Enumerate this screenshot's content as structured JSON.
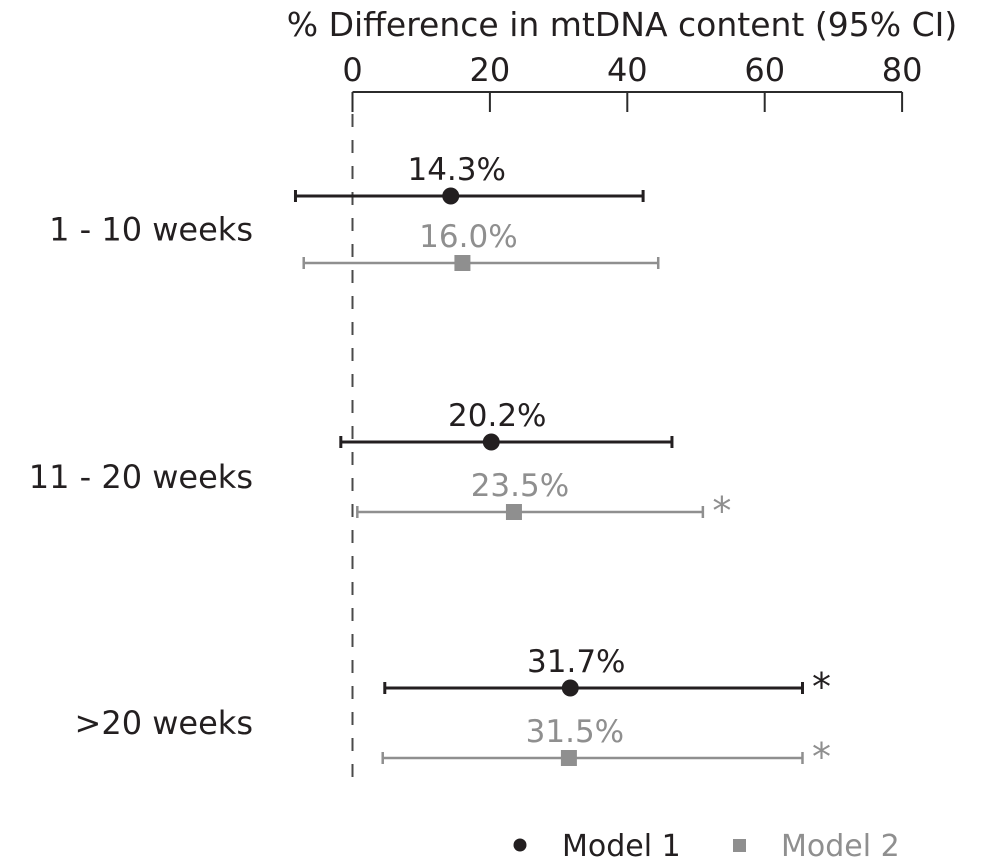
{
  "figure": {
    "title": "% Difference in mtDNA content (95% CI)"
  },
  "chart_data": {
    "type": "forest",
    "orientation": "horizontal",
    "title": "% Difference in mtDNA content (95% CI)",
    "axis": {
      "position": "top",
      "range": [
        0,
        80
      ],
      "ticks": [
        0,
        20,
        40,
        60,
        80
      ],
      "tick_labels": [
        "0",
        "20",
        "40",
        "60",
        "80"
      ],
      "zero_line": {
        "at": 0,
        "style": "dashed"
      }
    },
    "significance_marker": "*",
    "groups": [
      {
        "label": "1 - 10 weeks",
        "estimates": [
          {
            "series": "Model 1",
            "value": 14.3,
            "label": "14.3%",
            "ci_low": -8.3,
            "ci_high": 42.3,
            "significant": false
          },
          {
            "series": "Model 2",
            "value": 16.0,
            "label": "16.0%",
            "ci_low": -7.1,
            "ci_high": 44.5,
            "significant": false
          }
        ]
      },
      {
        "label": "11 - 20 weeks",
        "estimates": [
          {
            "series": "Model 1",
            "value": 20.2,
            "label": "20.2%",
            "ci_low": -1.7,
            "ci_high": 46.5,
            "significant": false
          },
          {
            "series": "Model 2",
            "value": 23.5,
            "label": "23.5%",
            "ci_low": 0.7,
            "ci_high": 51.0,
            "significant": true
          }
        ]
      },
      {
        "label": ">20 weeks",
        "estimates": [
          {
            "series": "Model 1",
            "value": 31.7,
            "label": "31.7%",
            "ci_low": 4.7,
            "ci_high": 65.5,
            "significant": true
          },
          {
            "series": "Model 2",
            "value": 31.5,
            "label": "31.5%",
            "ci_low": 4.4,
            "ci_high": 65.5,
            "significant": true
          }
        ]
      }
    ],
    "legend": {
      "position": "bottom-right",
      "items": [
        {
          "label": "Model 1",
          "marker": "circle",
          "color": "#231f20"
        },
        {
          "label": "Model 2",
          "marker": "square",
          "color": "#8f8f8f"
        }
      ]
    },
    "colors": {
      "model1": "#231f20",
      "model2": "#8f8f8f",
      "axis": "#2b2b2b",
      "zero_line": "#4a4a4a",
      "background": "#ffffff"
    }
  }
}
